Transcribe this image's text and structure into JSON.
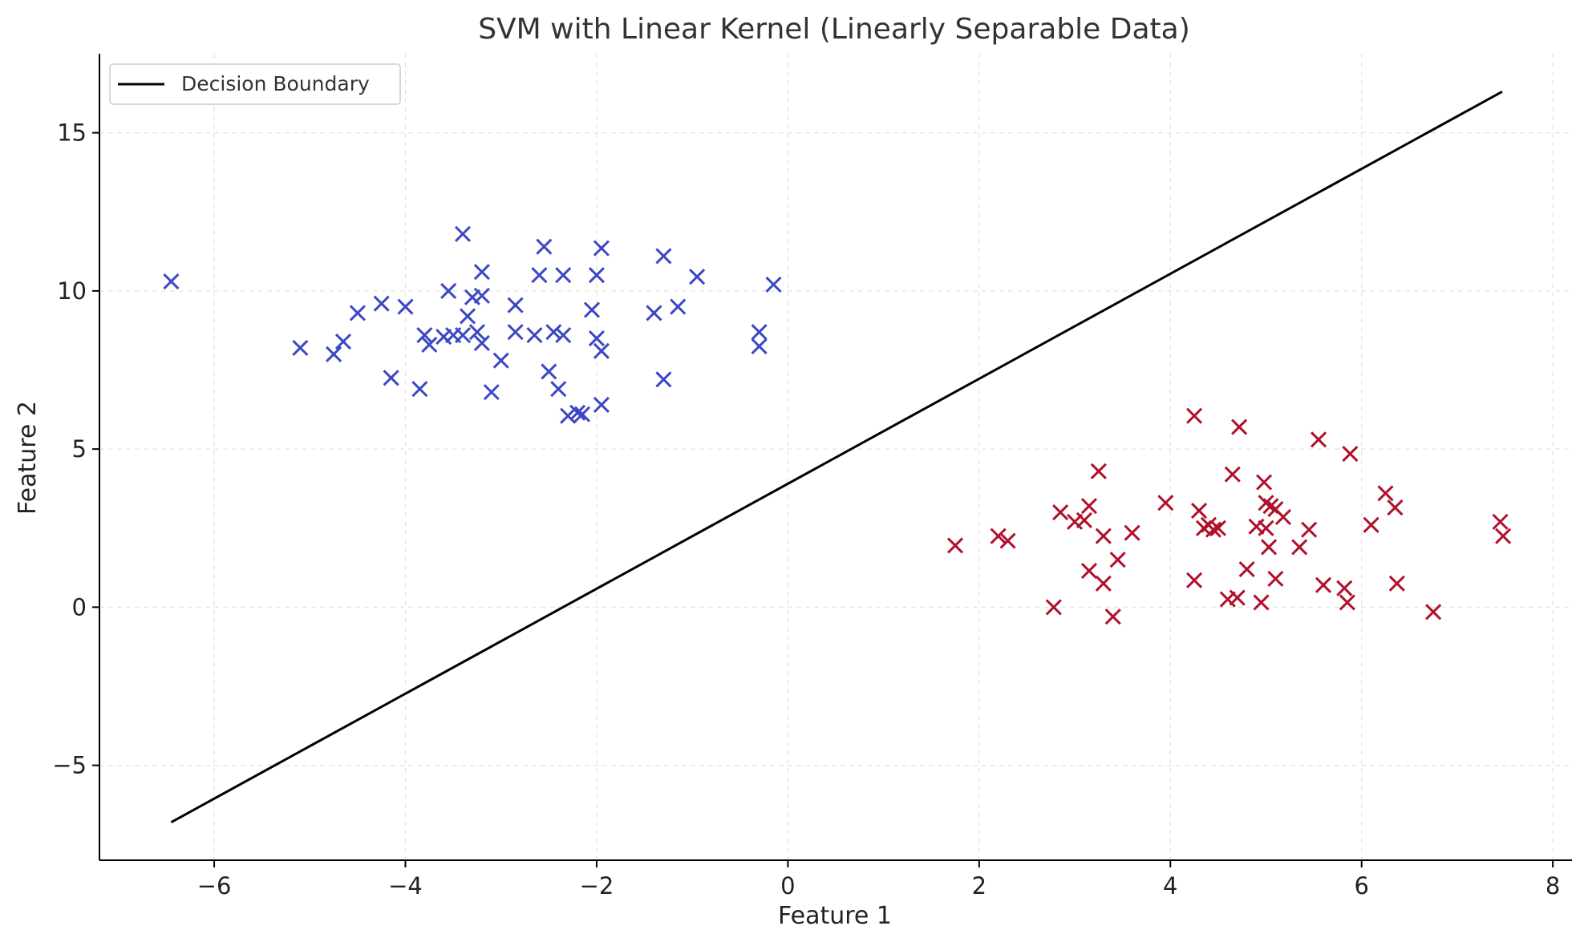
{
  "chart_data": {
    "type": "scatter",
    "title": "SVM with Linear Kernel (Linearly Separable Data)",
    "xlabel": "Feature 1",
    "ylabel": "Feature 2",
    "xlim": [
      -7.2,
      8.2
    ],
    "ylim": [
      -8,
      17.5
    ],
    "xticks": [
      -6,
      -4,
      -2,
      0,
      2,
      4,
      6,
      8
    ],
    "yticks": [
      -5,
      0,
      5,
      10,
      15
    ],
    "grid": true,
    "legend": {
      "placement": "top-left",
      "entries": [
        "Decision Boundary"
      ]
    },
    "decision_boundary": {
      "name": "Decision Boundary",
      "color": "#000000",
      "x": [
        -6.45,
        7.47
      ],
      "y": [
        -6.8,
        16.3
      ]
    },
    "series": [
      {
        "marker": "x",
        "color": "#3b47c4",
        "points": [
          [
            -6.45,
            10.3
          ],
          [
            -5.1,
            8.2
          ],
          [
            -4.75,
            8.0
          ],
          [
            -4.65,
            8.4
          ],
          [
            -4.5,
            9.3
          ],
          [
            -4.25,
            9.6
          ],
          [
            -4.15,
            7.25
          ],
          [
            -4.0,
            9.5
          ],
          [
            -3.85,
            6.9
          ],
          [
            -3.8,
            8.6
          ],
          [
            -3.75,
            8.3
          ],
          [
            -3.6,
            8.55
          ],
          [
            -3.55,
            10.0
          ],
          [
            -3.5,
            8.6
          ],
          [
            -3.4,
            8.6
          ],
          [
            -3.4,
            11.8
          ],
          [
            -3.35,
            9.2
          ],
          [
            -3.3,
            9.8
          ],
          [
            -3.25,
            8.7
          ],
          [
            -3.2,
            9.85
          ],
          [
            -3.2,
            10.6
          ],
          [
            -3.2,
            8.35
          ],
          [
            -3.1,
            6.8
          ],
          [
            -3.0,
            7.8
          ],
          [
            -2.85,
            8.7
          ],
          [
            -2.85,
            9.55
          ],
          [
            -2.65,
            8.6
          ],
          [
            -2.6,
            10.5
          ],
          [
            -2.55,
            11.4
          ],
          [
            -2.5,
            7.45
          ],
          [
            -2.45,
            8.7
          ],
          [
            -2.4,
            6.9
          ],
          [
            -2.35,
            8.6
          ],
          [
            -2.35,
            10.5
          ],
          [
            -2.3,
            6.05
          ],
          [
            -2.2,
            6.15
          ],
          [
            -2.15,
            6.1
          ],
          [
            -2.05,
            9.4
          ],
          [
            -2.0,
            10.5
          ],
          [
            -2.0,
            8.5
          ],
          [
            -1.95,
            11.35
          ],
          [
            -1.95,
            6.4
          ],
          [
            -1.95,
            8.1
          ],
          [
            -1.4,
            9.3
          ],
          [
            -1.3,
            11.1
          ],
          [
            -1.3,
            7.2
          ],
          [
            -1.15,
            9.5
          ],
          [
            -0.95,
            10.45
          ],
          [
            -0.3,
            8.7
          ],
          [
            -0.3,
            8.25
          ],
          [
            -0.15,
            10.2
          ]
        ]
      },
      {
        "marker": "x",
        "color": "#b0102b",
        "points": [
          [
            1.75,
            1.95
          ],
          [
            2.2,
            2.25
          ],
          [
            2.3,
            2.1
          ],
          [
            2.78,
            0.0
          ],
          [
            2.85,
            3.0
          ],
          [
            3.0,
            2.7
          ],
          [
            3.1,
            2.75
          ],
          [
            3.15,
            1.15
          ],
          [
            3.15,
            3.2
          ],
          [
            3.25,
            4.3
          ],
          [
            3.3,
            2.25
          ],
          [
            3.3,
            0.75
          ],
          [
            3.4,
            -0.3
          ],
          [
            3.45,
            1.5
          ],
          [
            3.6,
            2.35
          ],
          [
            3.95,
            3.3
          ],
          [
            4.25,
            6.05
          ],
          [
            4.25,
            0.85
          ],
          [
            4.3,
            3.05
          ],
          [
            4.35,
            2.5
          ],
          [
            4.4,
            2.6
          ],
          [
            4.45,
            2.45
          ],
          [
            4.5,
            2.5
          ],
          [
            4.6,
            0.25
          ],
          [
            4.65,
            4.2
          ],
          [
            4.7,
            0.3
          ],
          [
            4.72,
            5.7
          ],
          [
            4.8,
            1.2
          ],
          [
            4.9,
            2.55
          ],
          [
            4.95,
            0.15
          ],
          [
            4.98,
            3.95
          ],
          [
            5.0,
            2.5
          ],
          [
            5.0,
            3.3
          ],
          [
            5.03,
            1.9
          ],
          [
            5.05,
            3.2
          ],
          [
            5.1,
            0.9
          ],
          [
            5.1,
            3.1
          ],
          [
            5.18,
            2.85
          ],
          [
            5.35,
            1.9
          ],
          [
            5.45,
            2.45
          ],
          [
            5.55,
            5.3
          ],
          [
            5.6,
            0.7
          ],
          [
            5.82,
            0.6
          ],
          [
            5.85,
            0.15
          ],
          [
            5.88,
            4.85
          ],
          [
            6.1,
            2.6
          ],
          [
            6.25,
            3.6
          ],
          [
            6.35,
            3.15
          ],
          [
            6.37,
            0.75
          ],
          [
            6.75,
            -0.15
          ],
          [
            7.45,
            2.7
          ],
          [
            7.48,
            2.25
          ]
        ]
      }
    ]
  }
}
